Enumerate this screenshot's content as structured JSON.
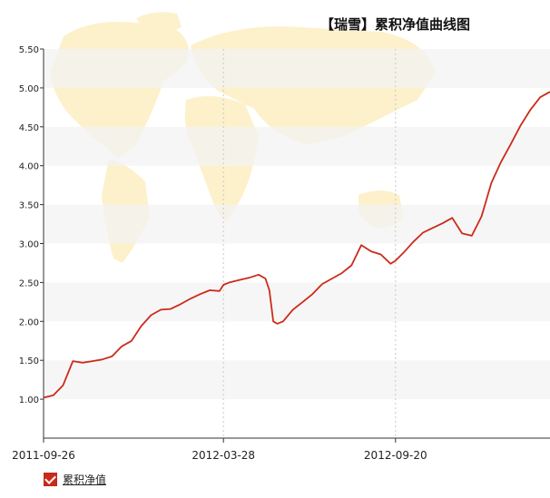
{
  "chart_data": {
    "type": "line",
    "title": "【瑞雪】累积净值曲线图",
    "ylim": [
      0.5,
      5.5
    ],
    "y_ticks": [
      "1.00",
      "1.50",
      "2.00",
      "2.50",
      "3.00",
      "3.50",
      "4.00",
      "4.50",
      "5.00",
      "5.50"
    ],
    "x_ticks": [
      "2011-09-26",
      "2012-03-28",
      "2012-09-20"
    ],
    "legend": {
      "label": "累积净值",
      "placement": "bottom-left"
    },
    "series": [
      {
        "name": "累积净值",
        "color": "#cc2a1a",
        "x": [
          "2011-09-26",
          "2011-10-06",
          "2011-10-16",
          "2011-10-26",
          "2011-11-05",
          "2011-11-15",
          "2011-11-25",
          "2011-12-05",
          "2011-12-15",
          "2011-12-25",
          "2012-01-04",
          "2012-01-14",
          "2012-01-24",
          "2012-02-03",
          "2012-02-13",
          "2012-02-23",
          "2012-03-04",
          "2012-03-14",
          "2012-03-24",
          "2012-03-28",
          "2012-04-03",
          "2012-04-13",
          "2012-04-23",
          "2012-05-03",
          "2012-05-10",
          "2012-05-14",
          "2012-05-18",
          "2012-05-22",
          "2012-05-28",
          "2012-06-07",
          "2012-06-17",
          "2012-06-27",
          "2012-07-07",
          "2012-07-17",
          "2012-07-27",
          "2012-08-06",
          "2012-08-16",
          "2012-08-26",
          "2012-09-05",
          "2012-09-15",
          "2012-09-20",
          "2012-09-28",
          "2012-10-08",
          "2012-10-18",
          "2012-10-28",
          "2012-11-07",
          "2012-11-17",
          "2012-11-27",
          "2012-12-07",
          "2012-12-17",
          "2012-12-27",
          "2013-01-06",
          "2013-01-16",
          "2013-01-26",
          "2013-02-05",
          "2013-02-15",
          "2013-02-25"
        ],
        "values": [
          1.02,
          1.05,
          1.18,
          1.49,
          1.47,
          1.49,
          1.51,
          1.55,
          1.68,
          1.75,
          1.94,
          2.08,
          2.15,
          2.16,
          2.22,
          2.29,
          2.35,
          2.4,
          2.39,
          2.47,
          2.5,
          2.53,
          2.56,
          2.6,
          2.55,
          2.4,
          2.0,
          1.97,
          2.0,
          2.15,
          2.25,
          2.35,
          2.48,
          2.55,
          2.62,
          2.72,
          2.98,
          2.9,
          2.86,
          2.74,
          2.78,
          2.88,
          3.02,
          3.14,
          3.2,
          3.26,
          3.33,
          3.13,
          3.1,
          3.35,
          3.78,
          4.05,
          4.28,
          4.52,
          4.72,
          4.88,
          4.95
        ]
      }
    ]
  }
}
